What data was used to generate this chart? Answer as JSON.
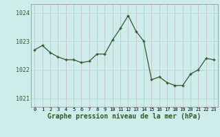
{
  "x": [
    0,
    1,
    2,
    3,
    4,
    5,
    6,
    7,
    8,
    9,
    10,
    11,
    12,
    13,
    14,
    15,
    16,
    17,
    18,
    19,
    20,
    21,
    22,
    23
  ],
  "y": [
    1022.7,
    1022.85,
    1022.6,
    1022.45,
    1022.35,
    1022.35,
    1022.25,
    1022.3,
    1022.55,
    1022.55,
    1023.05,
    1023.45,
    1023.9,
    1023.35,
    1023.0,
    1021.65,
    1021.75,
    1021.55,
    1021.45,
    1021.45,
    1021.85,
    1022.0,
    1022.4,
    1022.35
  ],
  "line_color": "#2d5a27",
  "marker_color": "#2d5a27",
  "bg_color": "#ceecea",
  "grid_color_v": "#c8b8c8",
  "grid_color_h": "#aad4ce",
  "xlabel": "Graphe pression niveau de la mer (hPa)",
  "xlabel_fontsize": 7,
  "ytick_fontsize": 6,
  "xtick_fontsize": 5,
  "yticks": [
    1021,
    1022,
    1023,
    1024
  ],
  "ylim": [
    1020.7,
    1024.3
  ],
  "xlim": [
    -0.5,
    23.5
  ],
  "xticks": [
    0,
    1,
    2,
    3,
    4,
    5,
    6,
    7,
    8,
    9,
    10,
    11,
    12,
    13,
    14,
    15,
    16,
    17,
    18,
    19,
    20,
    21,
    22,
    23
  ]
}
